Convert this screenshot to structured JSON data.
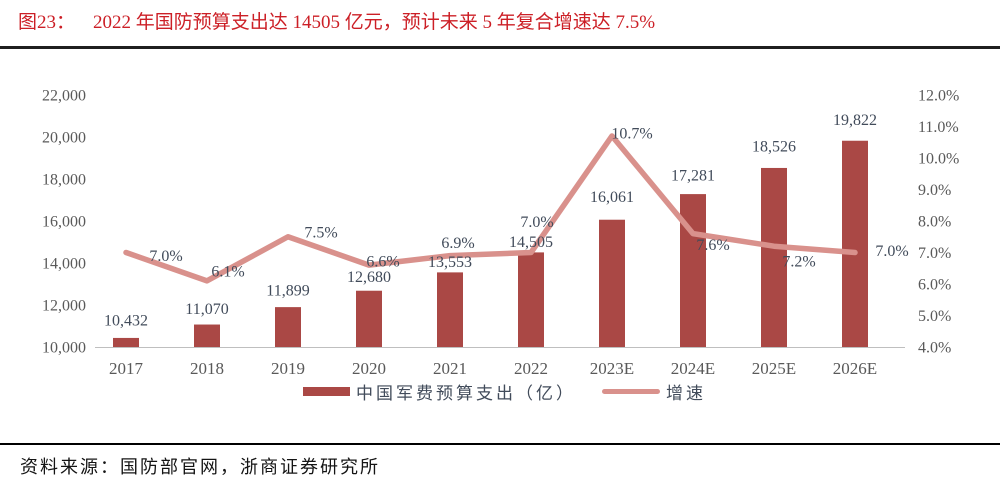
{
  "title": {
    "prefix": "图23：",
    "text": "2022 年国防预算支出达 14505 亿元，预计未来 5 年复合增速达 7.5%"
  },
  "legend": {
    "bars": "中国军费预算支出（亿）",
    "line": "增速"
  },
  "source": "资料来源：国防部官网，浙商证券研究所",
  "colors": {
    "bar": "#AA4845",
    "line": "#D9918C",
    "title": "#CC1F26",
    "tick_text": "#595959",
    "label_text": "#414B5A",
    "axis_line": "#BFBFBF",
    "rule_top": "#1F1F1F",
    "rule_bottom": "#000000"
  },
  "chart_data": {
    "type": "bar",
    "subtype": "bar+line combo, dual axis",
    "categories": [
      "2017",
      "2018",
      "2019",
      "2020",
      "2021",
      "2022",
      "2023E",
      "2024E",
      "2025E",
      "2026E"
    ],
    "series": [
      {
        "name": "中国军费预算支出（亿）",
        "type": "bar",
        "axis": "left",
        "values": [
          10432,
          11070,
          11899,
          12680,
          13553,
          14505,
          16061,
          17281,
          18526,
          19822
        ]
      },
      {
        "name": "增速",
        "type": "line",
        "axis": "right",
        "values_pct": [
          7.0,
          6.1,
          7.5,
          6.6,
          6.9,
          7.0,
          10.7,
          7.6,
          7.2,
          7.0
        ]
      }
    ],
    "y1_axis": {
      "min": 10000,
      "max": 22000,
      "step": 2000
    },
    "y2_axis": {
      "min": 4.0,
      "max": 12.0,
      "step": 1.0,
      "suffix": "%"
    },
    "grid": false,
    "legend_position": "bottom",
    "data_labels": true
  }
}
